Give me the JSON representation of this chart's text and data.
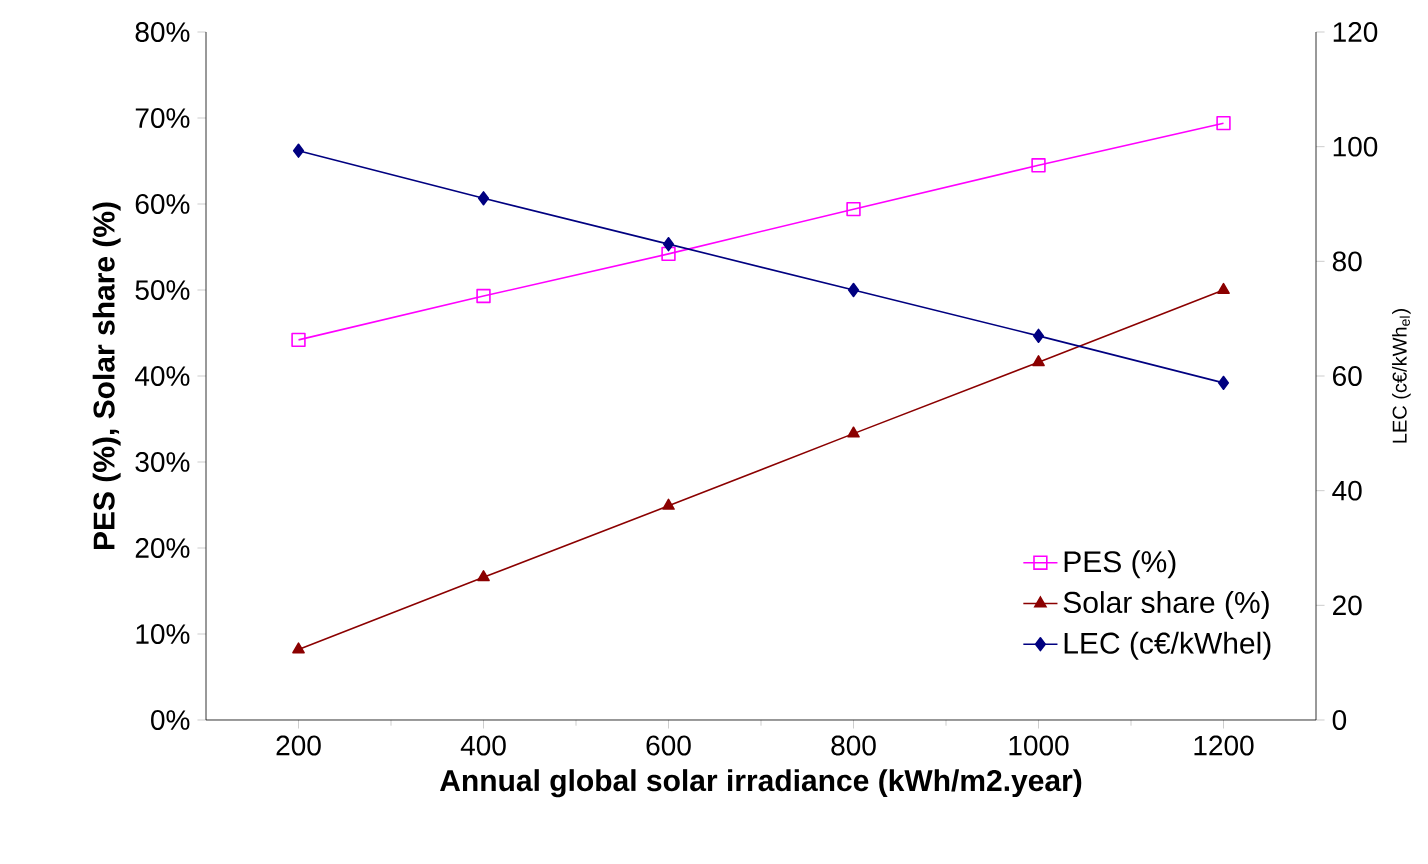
{
  "chart_data": {
    "type": "line",
    "xlabel": "Annual global solar irradiance (kWh/m2.year)",
    "ylabel": "PES (%), Solar share (%)",
    "y2label": "LEC (c€/kWh$_{el}$)",
    "x": [
      200,
      400,
      600,
      800,
      1000,
      1200
    ],
    "series": [
      {
        "name": "PES (%)",
        "color": "#ff00ff",
        "marker": "square",
        "values": [
          44.2,
          49.3,
          54.2,
          59.4,
          64.5,
          69.4
        ]
      },
      {
        "name": "Solar share (%)",
        "color": "#8b0000",
        "marker": "triangle",
        "values": [
          8.2,
          16.6,
          24.9,
          33.3,
          41.6,
          50.0
        ]
      },
      {
        "name": "LEC (c€/kWhel)",
        "color": "#000080",
        "marker": "diamond",
        "axis": "y2",
        "values": [
          99.3,
          91.0,
          83.0,
          75.0,
          67.0,
          58.8
        ]
      }
    ],
    "xlim": [
      100,
      1300
    ],
    "xticks": [
      200,
      400,
      600,
      800,
      1000,
      1200
    ],
    "ylim": [
      0,
      80
    ],
    "yticks": [
      {
        "value": 0,
        "label": "0%"
      },
      {
        "value": 10,
        "label": "10%"
      },
      {
        "value": 20,
        "label": "20%"
      },
      {
        "value": 30,
        "label": "30%"
      },
      {
        "value": 40,
        "label": "40%"
      },
      {
        "value": 50,
        "label": "50%"
      },
      {
        "value": 60,
        "label": "60%"
      },
      {
        "value": 70,
        "label": "70%"
      },
      {
        "value": 80,
        "label": "80%"
      }
    ],
    "y2lim": [
      0,
      120
    ],
    "y2ticks": [
      0,
      20,
      40,
      60,
      80,
      100,
      120
    ],
    "legend": "bottom right",
    "grid": false,
    "line_style": "solid"
  }
}
